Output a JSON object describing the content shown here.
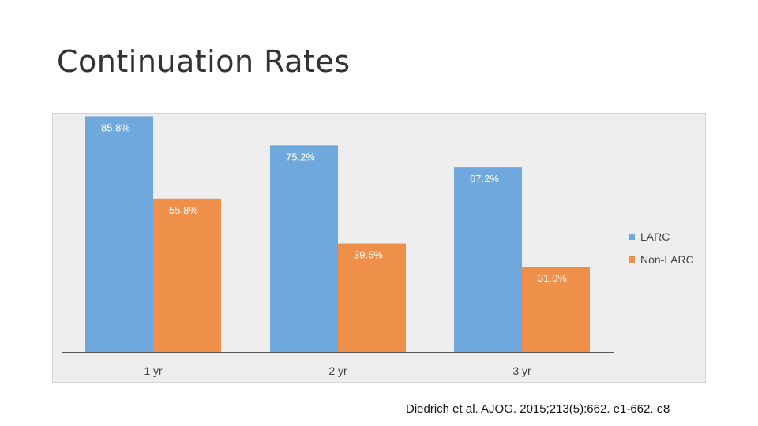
{
  "slide": {
    "title": "Continuation Rates",
    "citation": "Diedrich et al. AJOG. 2015;213(5):662. e1-662. e8"
  },
  "chart_data": {
    "type": "bar",
    "title": "",
    "xlabel": "",
    "ylabel": "",
    "categories": [
      "1 yr",
      "2 yr",
      "3 yr"
    ],
    "ylim": [
      0,
      100
    ],
    "grid": false,
    "legend_position": "right",
    "series": [
      {
        "name": "LARC",
        "color": "#6fa8dc",
        "values": [
          85.8,
          75.2,
          67.2
        ],
        "labels": [
          "85.8%",
          "75.2%",
          "67.2%"
        ]
      },
      {
        "name": "Non-LARC",
        "color": "#ee8f4a",
        "values": [
          55.8,
          39.5,
          31.0
        ],
        "labels": [
          "55.8%",
          "39.5%",
          "31.0%"
        ]
      }
    ]
  }
}
